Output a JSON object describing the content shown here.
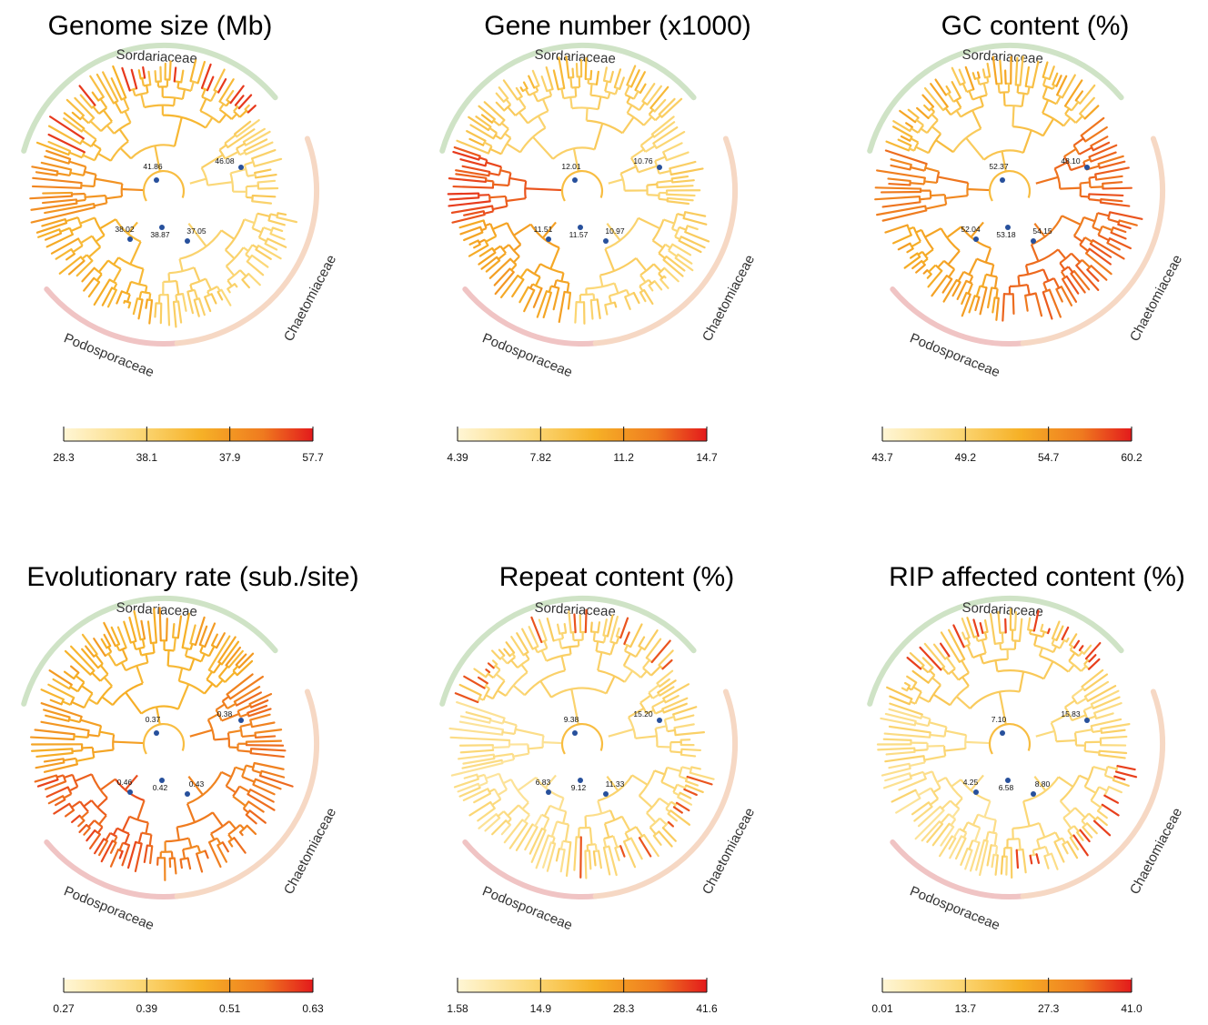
{
  "clade_names": [
    "Sordariaceae",
    "Podosporaceae",
    "Chaetomiaceae"
  ],
  "clade_colors": {
    "Sordariaceae": "#cfe3c6",
    "Podosporaceae": "#f0c4c4",
    "Chaetomiaceae": "#f6d8c4"
  },
  "colorscale": [
    "#fff6d5",
    "#fbd878",
    "#f6b127",
    "#ef7a1f",
    "#e31a1c"
  ],
  "panels": [
    {
      "title": "Genome size (Mb)",
      "nodes": [
        "41.86",
        "46.08",
        "38.02",
        "38.87",
        "37.05"
      ],
      "ticks": [
        "28.3",
        "38.1",
        "37.9",
        "57.7"
      ],
      "group_levels": {
        "sordariaceae": 0.42,
        "podosporaceae": 0.48,
        "chaetomiaceae": 0.28,
        "outgroup": 0.62,
        "hot_tips": 0.92
      }
    },
    {
      "title": "Gene number (x1000)",
      "nodes": [
        "12.01",
        "10.76",
        "11.51",
        "11.57",
        "10.97"
      ],
      "ticks": [
        "4.39",
        "7.82",
        "11.2",
        "14.7"
      ],
      "group_levels": {
        "sordariaceae": 0.32,
        "podosporaceae": 0.55,
        "chaetomiaceae": 0.28,
        "outgroup": 0.85,
        "hot_tips": 0.45
      }
    },
    {
      "title": "GC content (%)",
      "nodes": [
        "52.37",
        "48.10",
        "52.04",
        "53.18",
        "54.15"
      ],
      "ticks": [
        "43.7",
        "49.2",
        "54.7",
        "60.2"
      ],
      "group_levels": {
        "sordariaceae": 0.38,
        "podosporaceae": 0.55,
        "chaetomiaceae": 0.78,
        "outgroup": 0.72,
        "hot_tips": 0.55
      }
    },
    {
      "title": "Evolutionary rate (sub./site)",
      "nodes": [
        "0.37",
        "0.38",
        "0.46",
        "0.42",
        "0.43"
      ],
      "ticks": [
        "0.27",
        "0.39",
        "0.51",
        "0.63"
      ],
      "group_levels": {
        "sordariaceae": 0.48,
        "podosporaceae": 0.82,
        "chaetomiaceae": 0.72,
        "outgroup": 0.55,
        "hot_tips": 0.6
      }
    },
    {
      "title": "Repeat content (%)",
      "nodes": [
        "9.38",
        "15.20",
        "6.83",
        "9.12",
        "11.33"
      ],
      "ticks": [
        "1.58",
        "14.9",
        "28.3",
        "41.6"
      ],
      "group_levels": {
        "sordariaceae": 0.28,
        "podosporaceae": 0.2,
        "chaetomiaceae": 0.25,
        "outgroup": 0.18,
        "hot_tips": 0.85
      }
    },
    {
      "title": "RIP affected content (%)",
      "nodes": [
        "7.10",
        "15.83",
        "4.25",
        "6.58",
        "8.80"
      ],
      "ticks": [
        "0.01",
        "13.7",
        "27.3",
        "41.0"
      ],
      "group_levels": {
        "sordariaceae": 0.32,
        "podosporaceae": 0.2,
        "chaetomiaceae": 0.25,
        "outgroup": 0.22,
        "hot_tips": 0.9
      }
    }
  ]
}
